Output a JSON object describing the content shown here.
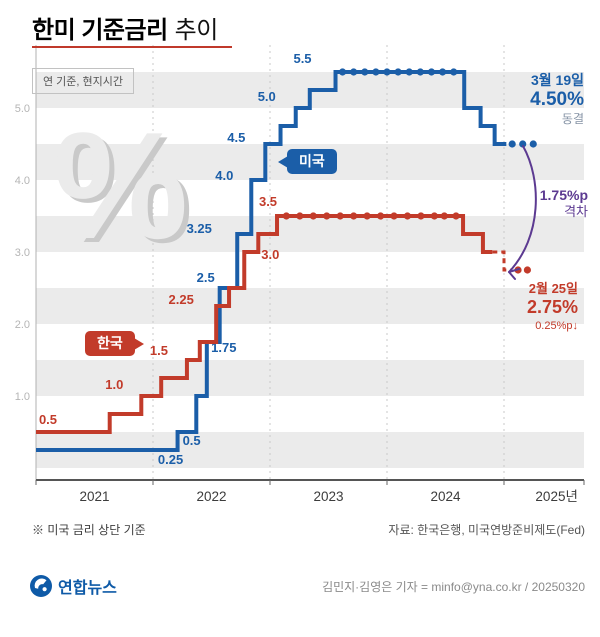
{
  "header": {
    "title_strong": "한미 기준금리",
    "title_light": "추이",
    "note": "연 기준, 현지시간"
  },
  "annotations": {
    "us_badge": "미국",
    "kr_badge": "한국",
    "us_end": {
      "date": "3월 19일",
      "rate": "4.50%",
      "status": "동결"
    },
    "gap": {
      "value": "1.75%p",
      "label": "격차"
    },
    "kr_end": {
      "date": "2월 25일",
      "rate": "2.75%",
      "change": "0.25%p↓"
    }
  },
  "footer": {
    "footnote": "※ 미국 금리 상단 기준",
    "source": "자료: 한국은행, 미국연방준비제도(Fed)",
    "brand": "연합뉴스",
    "credit": "김민지·김영은 기자 = minfo@yna.co.kr / 20250320"
  },
  "colors": {
    "us": "#1b5ea8",
    "kr": "#c23b2a",
    "gap": "#5c3a91",
    "title_underline": "#c0392b",
    "stripe": "#ebebeb"
  },
  "chart_data": {
    "type": "line",
    "title": "한미 기준금리 추이",
    "subtitle": "연 기준, 현지시간",
    "unit": "%",
    "stripe_color": "#ebebeb",
    "x_axis": {
      "year_labels": [
        "2021",
        "2022",
        "2023",
        "2024",
        "2025년"
      ],
      "label_positions": [
        2021.5,
        2022.5,
        2023.5,
        2024.5,
        2025.45
      ],
      "range": [
        2021,
        2025.68
      ],
      "gridlines": [
        2022,
        2023,
        2024,
        2025
      ]
    },
    "y_axis": {
      "tick_values": [
        1,
        2,
        3,
        4,
        5
      ],
      "tick_labels": [
        "1.0",
        "2.0",
        "3.0",
        "4.0",
        "5.0"
      ],
      "range": [
        -0.17,
        5.87
      ]
    },
    "series": [
      {
        "key": "us",
        "name": "미국",
        "color": "#1b5ea8",
        "steps": [
          [
            2021,
            0.25
          ],
          [
            2022.21,
            0.5
          ],
          [
            2022.37,
            1.0
          ],
          [
            2022.46,
            1.75
          ],
          [
            2022.57,
            2.5
          ],
          [
            2022.72,
            3.25
          ],
          [
            2022.84,
            4.0
          ],
          [
            2022.96,
            4.5
          ],
          [
            2023.09,
            4.75
          ],
          [
            2023.22,
            5.0
          ],
          [
            2023.34,
            5.25
          ],
          [
            2023.56,
            5.5
          ],
          [
            2024.66,
            5.0
          ],
          [
            2024.8,
            4.75
          ],
          [
            2024.92,
            4.5
          ]
        ],
        "solid_end": 2025.02,
        "dash_end": 2025.02,
        "dots": [
          2023.62,
          2023.715,
          2023.81,
          2023.905,
          2024.0,
          2024.095,
          2024.19,
          2024.285,
          2024.38,
          2024.475,
          2024.57,
          2025.07,
          2025.16,
          2025.25
        ],
        "labels": [
          {
            "t": "0.25",
            "x": 2022.15,
            "r": 0.25,
            "dx": 0,
            "dy": 14
          },
          {
            "t": "0.5",
            "x": 2022.33,
            "r": 0.5,
            "dx": 0,
            "dy": 13
          },
          {
            "t": "1.75",
            "x": 2022.46,
            "r": 1.75,
            "dx": 17,
            "dy": 10
          },
          {
            "t": "2.5",
            "x": 2022.57,
            "r": 2.5,
            "dx": -14,
            "dy": -6
          },
          {
            "t": "3.25",
            "x": 2022.72,
            "r": 3.25,
            "dx": -38,
            "dy": -1
          },
          {
            "t": "4.0",
            "x": 2022.84,
            "r": 4.0,
            "dx": -27,
            "dy": 0
          },
          {
            "t": "4.5",
            "x": 2022.96,
            "r": 4.5,
            "dx": -29,
            "dy": -2
          },
          {
            "t": "5.0",
            "x": 2023.22,
            "r": 5.0,
            "dx": -29,
            "dy": -7
          },
          {
            "t": "5.5",
            "x": 2023.56,
            "r": 5.5,
            "dx": -33,
            "dy": -9
          }
        ]
      },
      {
        "key": "kr",
        "name": "한국",
        "color": "#c23b2a",
        "steps": [
          [
            2021,
            0.5
          ],
          [
            2021.63,
            0.75
          ],
          [
            2021.9,
            1.0
          ],
          [
            2022.07,
            1.25
          ],
          [
            2022.29,
            1.5
          ],
          [
            2022.4,
            1.75
          ],
          [
            2022.54,
            2.25
          ],
          [
            2022.65,
            2.5
          ],
          [
            2022.78,
            3.0
          ],
          [
            2022.9,
            3.25
          ],
          [
            2023.06,
            3.5
          ],
          [
            2024.65,
            3.25
          ],
          [
            2024.82,
            3.0
          ],
          [
            2025.0,
            2.75
          ]
        ],
        "solid_end": 2024.9,
        "dash_end": 2025.06,
        "dots": [
          2023.14,
          2023.255,
          2023.37,
          2023.485,
          2023.6,
          2023.715,
          2023.83,
          2023.945,
          2024.06,
          2024.175,
          2024.29,
          2024.405,
          2024.49,
          2024.59,
          2025.12,
          2025.2
        ],
        "labels": [
          {
            "t": "0.5",
            "x": 2021.0,
            "r": 0.5,
            "dx": 12,
            "dy": -8
          },
          {
            "t": "1.0",
            "x": 2021.9,
            "r": 1.0,
            "dx": -27,
            "dy": -7
          },
          {
            "t": "1.5",
            "x": 2022.29,
            "r": 1.5,
            "dx": -28,
            "dy": -5
          },
          {
            "t": "2.25",
            "x": 2022.54,
            "r": 2.25,
            "dx": -35,
            "dy": -2
          },
          {
            "t": "3.0",
            "x": 2022.9,
            "r": 3.0,
            "dx": 12,
            "dy": 7
          },
          {
            "t": "3.5",
            "x": 2023.06,
            "r": 3.5,
            "dx": -9,
            "dy": -10
          }
        ]
      }
    ]
  }
}
